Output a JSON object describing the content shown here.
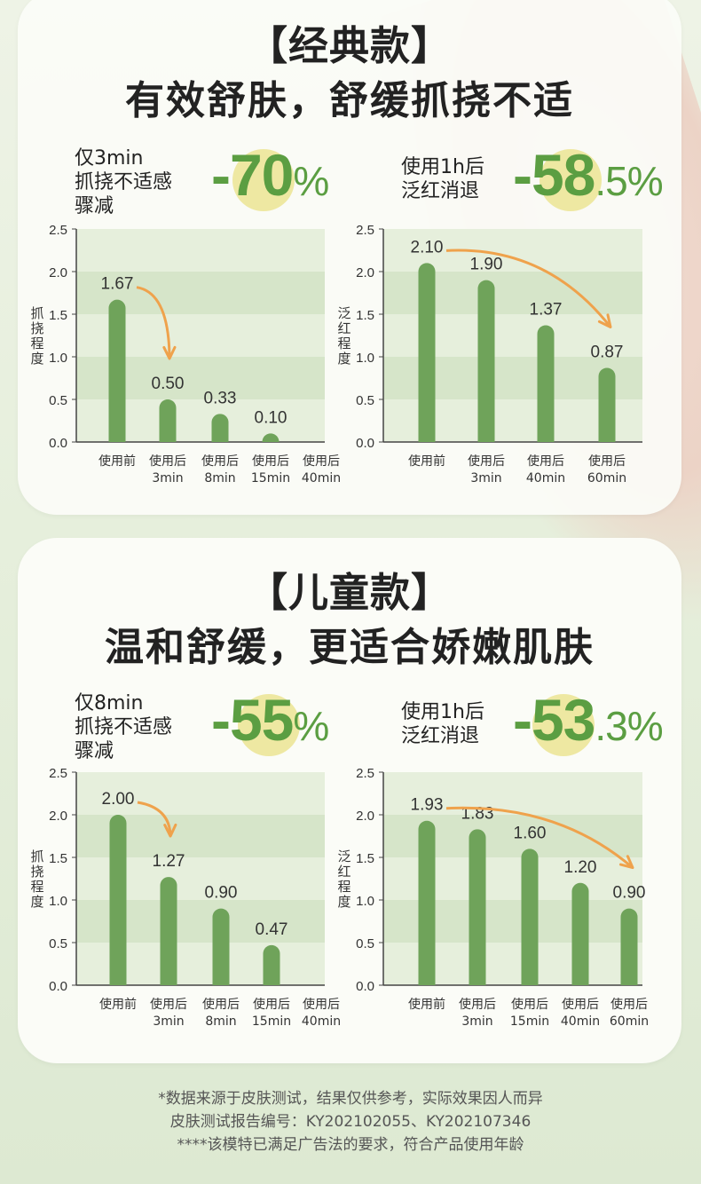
{
  "sections": [
    {
      "title": "【经典款】",
      "subtitle": "有效舒肤，舒缓抓挠不适",
      "stats": [
        {
          "label": "仅3min\n抓挠不适感\n骤减",
          "value": "-70",
          "unit": "%"
        },
        {
          "label": "使用1h后\n泛红消退",
          "value": "-58",
          "unit": ".5%"
        }
      ]
    },
    {
      "title": "【儿童款】",
      "subtitle": "温和舒缓，更适合娇嫩肌肤",
      "stats": [
        {
          "label": "仅8min\n抓挠不适感\n骤减",
          "value": "-55",
          "unit": "%"
        },
        {
          "label": "使用1h后\n泛红消退",
          "value": "-53",
          "unit": ".3%"
        }
      ]
    }
  ],
  "chart_data": [
    {
      "type": "bar",
      "ylabel": "抓挠程度",
      "ylim": [
        0,
        2.5
      ],
      "yticks": [
        "0.0",
        "0.5",
        "1.0",
        "1.5",
        "2.0",
        "2.5"
      ],
      "categories": [
        [
          "使用前"
        ],
        [
          "使用后",
          "3min"
        ],
        [
          "使用后",
          "8min"
        ],
        [
          "使用后",
          "15min"
        ],
        [
          "使用后",
          "40min"
        ]
      ],
      "values": [
        1.67,
        0.5,
        0.33,
        0.1,
        0
      ],
      "value_labels": [
        "1.67",
        "0.50",
        "0.33",
        "0.10",
        ""
      ],
      "arrow": [
        0,
        1
      ]
    },
    {
      "type": "bar",
      "ylabel": "泛红程度",
      "ylim": [
        0,
        2.5
      ],
      "yticks": [
        "0.0",
        "0.5",
        "1.0",
        "1.5",
        "2.0",
        "2.5"
      ],
      "categories": [
        [
          "使用前"
        ],
        [
          "使用后",
          "3min"
        ],
        [
          "使用后",
          "40min"
        ],
        [
          "使用后",
          "60min"
        ]
      ],
      "values": [
        2.1,
        1.9,
        1.37,
        0.87
      ],
      "value_labels": [
        "2.10",
        "1.90",
        "1.37",
        "0.87"
      ],
      "arrow": [
        0,
        3
      ]
    },
    {
      "type": "bar",
      "ylabel": "抓挠程度",
      "ylim": [
        0,
        2.5
      ],
      "yticks": [
        "0.0",
        "0.5",
        "1.0",
        "1.5",
        "2.0",
        "2.5"
      ],
      "categories": [
        [
          "使用前"
        ],
        [
          "使用后",
          "3min"
        ],
        [
          "使用后",
          "8min"
        ],
        [
          "使用后",
          "15min"
        ],
        [
          "使用后",
          "40min"
        ]
      ],
      "values": [
        2.0,
        1.27,
        0.9,
        0.47,
        0
      ],
      "value_labels": [
        "2.00",
        "1.27",
        "0.90",
        "0.47",
        ""
      ],
      "arrow": [
        0,
        1
      ]
    },
    {
      "type": "bar",
      "ylabel": "泛红程度",
      "ylim": [
        0,
        2.5
      ],
      "yticks": [
        "0.0",
        "0.5",
        "1.0",
        "1.5",
        "2.0",
        "2.5"
      ],
      "categories": [
        [
          "使用前"
        ],
        [
          "使用后",
          "3min"
        ],
        [
          "使用后",
          "15min"
        ],
        [
          "使用后",
          "40min"
        ],
        [
          "使用后",
          "60min"
        ]
      ],
      "values": [
        1.93,
        1.83,
        1.6,
        1.2,
        0.9
      ],
      "value_labels": [
        "1.93",
        "1.83",
        "1.60",
        "1.20",
        "0.90"
      ],
      "arrow": [
        0,
        4
      ]
    }
  ],
  "footnotes": [
    "*数据来源于皮肤测试，结果仅供参考，实际效果因人而异",
    "皮肤测试报告编号：KY202102055、KY202107346",
    "****该模特已满足广告法的要求，符合产品使用年龄"
  ],
  "colors": {
    "bar": "#6fa35a",
    "band_dark": "#d6e5c9",
    "band_light": "#e6efdc",
    "arrow": "#efa24c",
    "accent": "#5b9e42",
    "highlight": "#eee8a2"
  }
}
